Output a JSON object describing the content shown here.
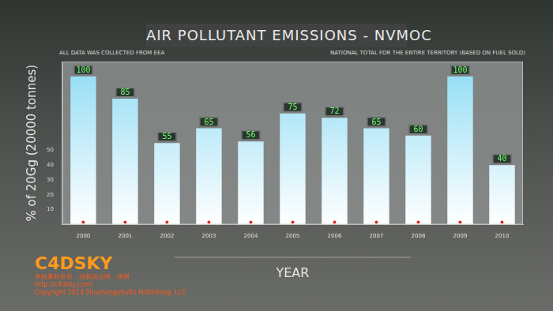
{
  "chart_data": {
    "type": "bar",
    "title": "AIR POLLUTANT EMISSIONS - NVMOC",
    "subtitle": [
      "ALL DATA WAS COLLECTED FROM EEA",
      "NATIONAL TOTAL FOR THE ENTIRE TERRITORY (BASED ON FUEL SOLD)"
    ],
    "annotations": [
      "C4DSKY",
      "本站素材发布，转载请注明，谢谢",
      "http://c4dsky.com/",
      "Copyright 2014 Shushengstudio Publishing, LLC"
    ],
    "x_label": "YEAR",
    "y_label": "% of 20Gg (20000 tonnes)",
    "categories": [
      "2000",
      "2001",
      "2002",
      "2003",
      "2004",
      "2005",
      "2006",
      "2007",
      "2008",
      "2009",
      "2010"
    ],
    "values": [
      100,
      85,
      55,
      65,
      56,
      75,
      72,
      65,
      60,
      100,
      40
    ],
    "color": "#8fdcf5",
    "ylim": [
      0,
      110
    ],
    "yticks": [
      10,
      20,
      30,
      40,
      50
    ],
    "grid": false,
    "data_labels": true
  }
}
